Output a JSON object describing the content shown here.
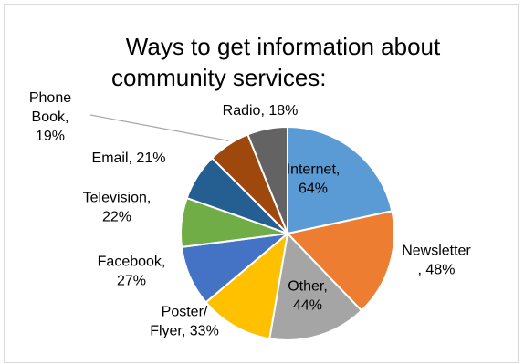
{
  "chart_data": {
    "type": "pie",
    "title_lines": [
      "Ways to get information about",
      "community services:"
    ],
    "slices": [
      {
        "name": "Internet",
        "value": 64,
        "label_lines": [
          "Internet,",
          "64%"
        ],
        "color": "#5b9bd5"
      },
      {
        "name": "Newsletter",
        "value": 48,
        "label_lines": [
          "Newsletter",
          ", 48%"
        ],
        "color": "#ed7d31"
      },
      {
        "name": "Other",
        "value": 44,
        "label_lines": [
          "Other,",
          "44%"
        ],
        "color": "#a5a5a5"
      },
      {
        "name": "Poster/ Flyer",
        "value": 33,
        "label_lines": [
          "Poster/",
          "Flyer, 33%"
        ],
        "color": "#ffc000"
      },
      {
        "name": "Facebook",
        "value": 27,
        "label_lines": [
          "Facebook,",
          "27%"
        ],
        "color": "#4472c4"
      },
      {
        "name": "Television",
        "value": 22,
        "label_lines": [
          "Television,",
          "22%"
        ],
        "color": "#70ad47"
      },
      {
        "name": "Email",
        "value": 21,
        "label_lines": [
          "Email, 21%"
        ],
        "color": "#255e91"
      },
      {
        "name": "Phone Book",
        "value": 19,
        "label_lines": [
          "Phone",
          "Book,",
          "19%"
        ],
        "color": "#9e480e"
      },
      {
        "name": "Radio",
        "value": 18,
        "label_lines": [
          "Radio, 18%"
        ],
        "color": "#636363"
      }
    ]
  }
}
